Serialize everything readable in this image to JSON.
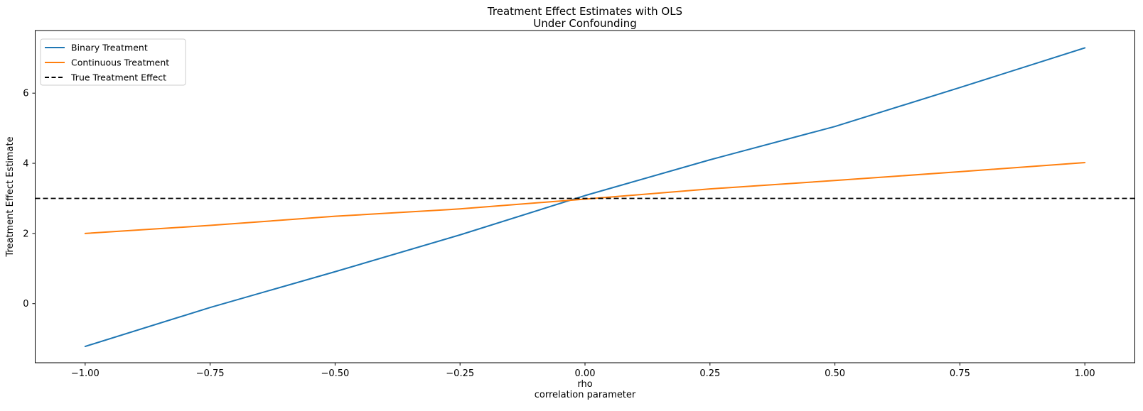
{
  "title": {
    "line1": "Treatment Effect Estimates with OLS",
    "line2": "Under Confounding"
  },
  "axes": {
    "xlabel_line1": "rho",
    "xlabel_line2": "correlation parameter",
    "ylabel": "Treatment Effect Estimate",
    "xlim": [
      -1.1,
      1.1
    ],
    "ylim": [
      -1.685,
      7.785
    ],
    "xticks": [
      -1.0,
      -0.75,
      -0.5,
      -0.25,
      0.0,
      0.25,
      0.5,
      0.75,
      1.0
    ],
    "xtick_labels": [
      "−1.00",
      "−0.75",
      "−0.50",
      "−0.25",
      "0.00",
      "0.25",
      "0.50",
      "0.75",
      "1.00"
    ],
    "yticks": [
      0,
      2,
      4,
      6
    ],
    "ytick_labels": [
      "0",
      "2",
      "4",
      "6"
    ],
    "grid": false
  },
  "legend": {
    "position": "upper-left",
    "entries": [
      {
        "label": "Binary Treatment",
        "color": "#1f77b4",
        "dash": false
      },
      {
        "label": "Continuous Treatment",
        "color": "#ff7f0e",
        "dash": false
      },
      {
        "label": "True Treatment Effect",
        "color": "#000000",
        "dash": true
      }
    ]
  },
  "colors": {
    "binary": "#1f77b4",
    "continuous": "#ff7f0e",
    "true_effect": "#000000",
    "spine": "#000000",
    "legend_border": "#cccccc",
    "background": "#ffffff"
  },
  "chart_data": {
    "type": "line",
    "title": "Treatment Effect Estimates with OLS\nUnder Confounding",
    "xlabel": "rho\ncorrelation parameter",
    "ylabel": "Treatment Effect Estimate",
    "xlim": [
      -1.1,
      1.1
    ],
    "ylim": [
      -1.685,
      7.785
    ],
    "legend_position": "upper-left",
    "grid": false,
    "x": [
      -1.0,
      -0.75,
      -0.5,
      -0.25,
      0.0,
      0.25,
      0.5,
      0.75,
      1.0
    ],
    "series": [
      {
        "name": "Binary Treatment",
        "color": "#1f77b4",
        "style": "solid",
        "values": [
          -1.22,
          -0.11,
          0.91,
          1.96,
          3.08,
          4.1,
          5.05,
          6.16,
          7.29
        ]
      },
      {
        "name": "Continuous Treatment",
        "color": "#ff7f0e",
        "style": "solid",
        "values": [
          2.0,
          2.23,
          2.49,
          2.7,
          2.98,
          3.27,
          3.51,
          3.76,
          4.02
        ]
      },
      {
        "name": "True Treatment Effect",
        "color": "#000000",
        "style": "dashed",
        "constant": 3.0
      }
    ]
  }
}
